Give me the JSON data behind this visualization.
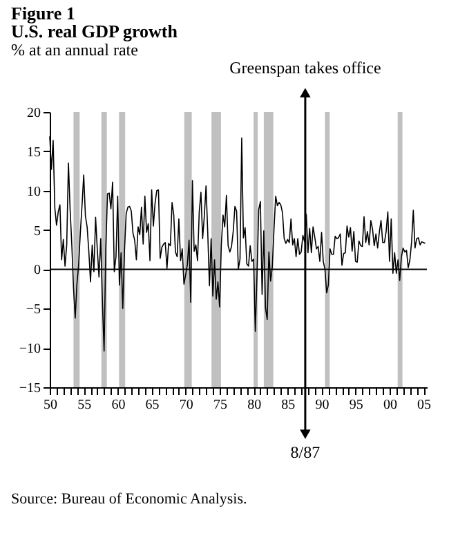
{
  "chart_data": {
    "type": "line",
    "title": "Figure 1\nU.S. real GDP growth",
    "subtitle": "% at an annual rate",
    "x": [
      1950,
      1950.25,
      1950.5,
      1950.75,
      1951,
      1951.25,
      1951.5,
      1951.75,
      1952,
      1952.25,
      1952.5,
      1952.75,
      1953,
      1953.25,
      1953.5,
      1953.75,
      1954,
      1954.25,
      1954.5,
      1954.75,
      1955,
      1955.25,
      1955.5,
      1955.75,
      1956,
      1956.25,
      1956.5,
      1956.75,
      1957,
      1957.25,
      1957.5,
      1957.75,
      1958,
      1958.25,
      1958.5,
      1958.75,
      1959,
      1959.25,
      1959.5,
      1959.75,
      1960,
      1960.25,
      1960.5,
      1960.75,
      1961,
      1961.25,
      1961.5,
      1961.75,
      1962,
      1962.25,
      1962.5,
      1962.75,
      1963,
      1963.25,
      1963.5,
      1963.75,
      1964,
      1964.25,
      1964.5,
      1964.75,
      1965,
      1965.25,
      1965.5,
      1965.75,
      1966,
      1966.25,
      1966.5,
      1966.75,
      1967,
      1967.25,
      1967.5,
      1967.75,
      1968,
      1968.25,
      1968.5,
      1968.75,
      1969,
      1969.25,
      1969.5,
      1969.75,
      1970,
      1970.25,
      1970.5,
      1970.75,
      1971,
      1971.25,
      1971.5,
      1971.75,
      1972,
      1972.25,
      1972.5,
      1972.75,
      1973,
      1973.25,
      1973.5,
      1973.75,
      1974,
      1974.25,
      1974.5,
      1974.75,
      1975,
      1975.25,
      1975.5,
      1975.75,
      1976,
      1976.25,
      1976.5,
      1976.75,
      1977,
      1977.25,
      1977.5,
      1977.75,
      1978,
      1978.25,
      1978.5,
      1978.75,
      1979,
      1979.25,
      1979.5,
      1979.75,
      1980,
      1980.25,
      1980.5,
      1980.75,
      1981,
      1981.25,
      1981.5,
      1981.75,
      1982,
      1982.25,
      1982.5,
      1982.75,
      1983,
      1983.25,
      1983.5,
      1983.75,
      1984,
      1984.25,
      1984.5,
      1984.75,
      1985,
      1985.25,
      1985.5,
      1985.75,
      1986,
      1986.25,
      1986.5,
      1986.75,
      1987,
      1987.25,
      1987.5,
      1987.75,
      1988,
      1988.25,
      1988.5,
      1988.75,
      1989,
      1989.25,
      1989.5,
      1989.75,
      1990,
      1990.25,
      1990.5,
      1990.75,
      1991,
      1991.25,
      1991.5,
      1991.75,
      1992,
      1992.25,
      1992.5,
      1992.75,
      1993,
      1993.25,
      1993.5,
      1993.75,
      1994,
      1994.25,
      1994.5,
      1994.75,
      1995,
      1995.25,
      1995.5,
      1995.75,
      1996,
      1996.25,
      1996.5,
      1996.75,
      1997,
      1997.25,
      1997.5,
      1997.75,
      1998,
      1998.25,
      1998.5,
      1998.75,
      1999,
      1999.25,
      1999.5,
      1999.75,
      2000,
      2000.25,
      2000.5,
      2000.75,
      2001,
      2001.25,
      2001.5,
      2001.75,
      2002,
      2002.25,
      2002.5,
      2002.75,
      2003,
      2003.25,
      2003.5,
      2003.75,
      2004,
      2004.25,
      2004.5,
      2004.75,
      2005,
      2005.25
    ],
    "series": [
      {
        "color": "#000000",
        "values": [
          16.9,
          12.7,
          16.4,
          7.8,
          5.6,
          7.3,
          8.2,
          1.2,
          3.8,
          0.4,
          3.1,
          13.5,
          7.6,
          3.1,
          -2.4,
          -6.2,
          -1.9,
          0.5,
          4.6,
          8.1,
          12.0,
          6.8,
          5.4,
          2.3,
          -1.6,
          3.1,
          -0.3,
          6.6,
          2.5,
          -1.0,
          3.9,
          -4.1,
          -10.4,
          2.6,
          9.6,
          9.7,
          7.7,
          11.1,
          -0.3,
          1.6,
          9.3,
          -2.0,
          2.1,
          -5.0,
          2.4,
          7.1,
          7.9,
          8.0,
          7.4,
          4.6,
          3.7,
          1.2,
          5.4,
          4.4,
          7.9,
          3.2,
          9.3,
          4.7,
          5.8,
          1.1,
          10.1,
          5.5,
          8.4,
          10.0,
          10.1,
          1.4,
          2.8,
          3.2,
          3.4,
          0.1,
          3.3,
          3.0,
          8.5,
          6.9,
          2.2,
          1.6,
          6.4,
          1.1,
          2.6,
          -1.9,
          -0.7,
          0.6,
          3.7,
          -4.2,
          11.3,
          2.3,
          3.1,
          1.1,
          7.3,
          9.8,
          3.9,
          6.8,
          10.6,
          4.7,
          -2.1,
          3.9,
          -3.4,
          1.2,
          -3.8,
          -1.6,
          -4.8,
          3.1,
          6.9,
          5.4,
          9.4,
          3.0,
          2.2,
          2.9,
          4.8,
          8.0,
          7.4,
          0.0,
          1.3,
          16.7,
          4.0,
          5.3,
          0.7,
          0.4,
          3.0,
          1.0,
          1.3,
          -7.9,
          -0.7,
          7.6,
          8.6,
          -3.2,
          4.9,
          -4.9,
          -6.4,
          2.2,
          -1.5,
          0.3,
          5.1,
          9.3,
          8.1,
          8.5,
          8.2,
          7.2,
          3.9,
          3.3,
          3.8,
          3.4,
          6.4,
          3.1,
          3.9,
          1.6,
          3.9,
          1.9,
          2.2,
          4.3,
          3.5,
          7.0,
          2.1,
          5.2,
          2.1,
          5.4,
          4.1,
          2.6,
          2.9,
          1.0,
          4.7,
          1.0,
          0.0,
          -3.0,
          -2.0,
          2.6,
          1.9,
          1.9,
          4.2,
          3.9,
          4.0,
          4.5,
          0.5,
          2.0,
          2.1,
          5.5,
          4.1,
          5.3,
          2.3,
          4.8,
          1.0,
          0.9,
          3.6,
          3.0,
          2.9,
          6.7,
          3.4,
          4.8,
          3.1,
          6.2,
          5.1,
          3.0,
          4.5,
          2.7,
          4.7,
          6.2,
          3.4,
          3.4,
          4.8,
          7.3,
          1.0,
          6.4,
          -0.5,
          2.1,
          -0.5,
          1.2,
          -1.4,
          1.6,
          2.7,
          2.2,
          2.4,
          0.2,
          1.2,
          3.5,
          7.5,
          2.7,
          3.9,
          4.0,
          3.1,
          3.5,
          3.4,
          3.3
        ]
      }
    ],
    "xlim": [
      1950,
      2005.5
    ],
    "xticks": [
      {
        "value": 1950,
        "label": "50"
      },
      {
        "value": 1951,
        "label": null
      },
      {
        "value": 1952,
        "label": null
      },
      {
        "value": 1953,
        "label": null
      },
      {
        "value": 1954,
        "label": null
      },
      {
        "value": 1955,
        "label": "55"
      },
      {
        "value": 1956,
        "label": null
      },
      {
        "value": 1957,
        "label": null
      },
      {
        "value": 1958,
        "label": null
      },
      {
        "value": 1959,
        "label": null
      },
      {
        "value": 1960,
        "label": "60"
      },
      {
        "value": 1961,
        "label": null
      },
      {
        "value": 1962,
        "label": null
      },
      {
        "value": 1963,
        "label": null
      },
      {
        "value": 1964,
        "label": null
      },
      {
        "value": 1965,
        "label": "65"
      },
      {
        "value": 1966,
        "label": null
      },
      {
        "value": 1967,
        "label": null
      },
      {
        "value": 1968,
        "label": null
      },
      {
        "value": 1969,
        "label": null
      },
      {
        "value": 1970,
        "label": "70"
      },
      {
        "value": 1971,
        "label": null
      },
      {
        "value": 1972,
        "label": null
      },
      {
        "value": 1973,
        "label": null
      },
      {
        "value": 1974,
        "label": null
      },
      {
        "value": 1975,
        "label": "75"
      },
      {
        "value": 1976,
        "label": null
      },
      {
        "value": 1977,
        "label": null
      },
      {
        "value": 1978,
        "label": null
      },
      {
        "value": 1979,
        "label": null
      },
      {
        "value": 1980,
        "label": "80"
      },
      {
        "value": 1981,
        "label": null
      },
      {
        "value": 1982,
        "label": null
      },
      {
        "value": 1983,
        "label": null
      },
      {
        "value": 1984,
        "label": null
      },
      {
        "value": 1985,
        "label": "85"
      },
      {
        "value": 1986,
        "label": null
      },
      {
        "value": 1987,
        "label": null
      },
      {
        "value": 1988,
        "label": null
      },
      {
        "value": 1989,
        "label": null
      },
      {
        "value": 1990,
        "label": "90"
      },
      {
        "value": 1991,
        "label": null
      },
      {
        "value": 1992,
        "label": null
      },
      {
        "value": 1993,
        "label": null
      },
      {
        "value": 1994,
        "label": null
      },
      {
        "value": 1995,
        "label": "95"
      },
      {
        "value": 1996,
        "label": null
      },
      {
        "value": 1997,
        "label": null
      },
      {
        "value": 1998,
        "label": null
      },
      {
        "value": 1999,
        "label": null
      },
      {
        "value": 2000,
        "label": "00"
      },
      {
        "value": 2001,
        "label": null
      },
      {
        "value": 2002,
        "label": null
      },
      {
        "value": 2003,
        "label": null
      },
      {
        "value": 2004,
        "label": null
      },
      {
        "value": 2005,
        "label": "05"
      }
    ],
    "ylim": [
      -15,
      20
    ],
    "yticks": [
      -15,
      -10,
      -5,
      0,
      5,
      10,
      15,
      20
    ],
    "bands": [
      {
        "axis": "x",
        "from": 1953.5,
        "to": 1954.4,
        "color": "#c0c0c0"
      },
      {
        "axis": "x",
        "from": 1957.6,
        "to": 1958.4,
        "color": "#c0c0c0"
      },
      {
        "axis": "x",
        "from": 1960.2,
        "to": 1961.1,
        "color": "#c0c0c0"
      },
      {
        "axis": "x",
        "from": 1969.8,
        "to": 1970.9,
        "color": "#c0c0c0"
      },
      {
        "axis": "x",
        "from": 1973.8,
        "to": 1975.2,
        "color": "#c0c0c0"
      },
      {
        "axis": "x",
        "from": 1980.0,
        "to": 1980.6,
        "color": "#c0c0c0"
      },
      {
        "axis": "x",
        "from": 1981.5,
        "to": 1982.9,
        "color": "#c0c0c0"
      },
      {
        "axis": "x",
        "from": 1990.5,
        "to": 1991.2,
        "color": "#c0c0c0"
      },
      {
        "axis": "x",
        "from": 2001.2,
        "to": 2001.9,
        "color": "#c0c0c0"
      }
    ],
    "ref_lines": [
      {
        "axis": "y",
        "value": 0,
        "color": "#000000"
      },
      {
        "axis": "x",
        "value": 1987.6,
        "label": "Greenspan takes office",
        "color": "#000000"
      }
    ],
    "annotations": [
      "8/87",
      "Source: Bureau of Economic Analysis."
    ],
    "grid": false,
    "line_style": "solid",
    "marker": "none"
  }
}
